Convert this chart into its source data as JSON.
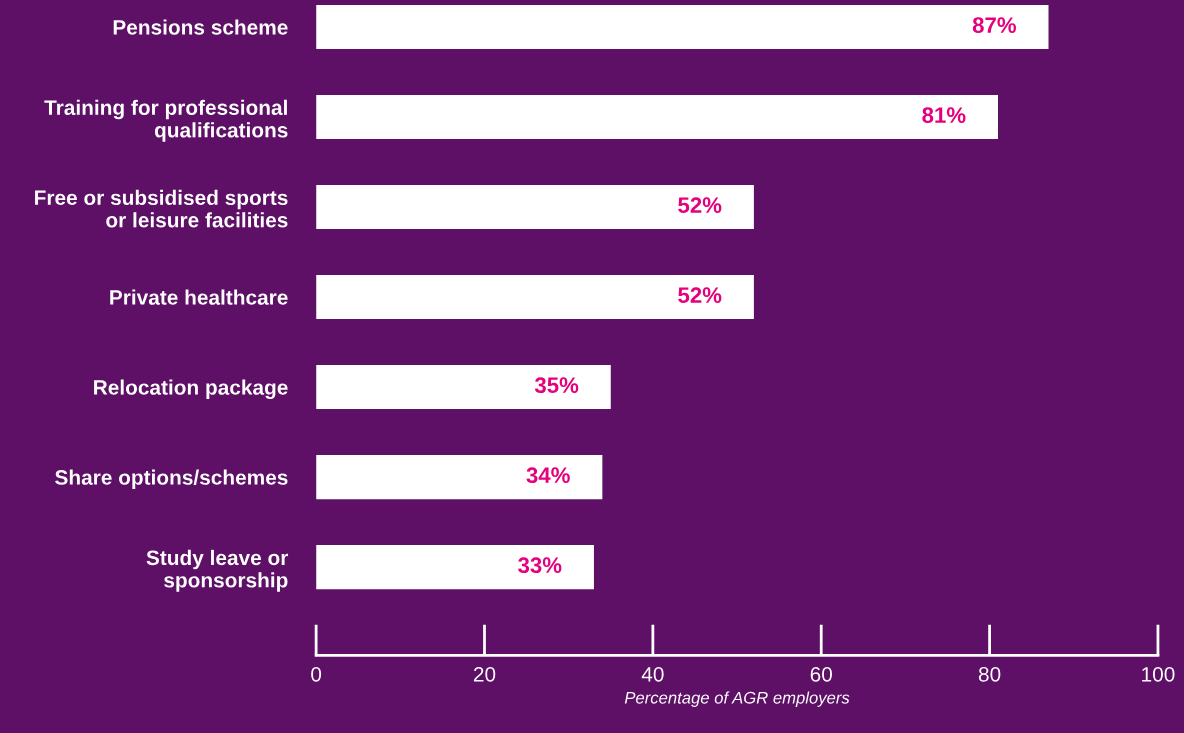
{
  "chart_data": {
    "type": "bar",
    "orientation": "horizontal",
    "categories": [
      "Pensions scheme",
      "Training for professional\nqualifications",
      "Free or subsidised sports\nor leisure facilities",
      "Private healthcare",
      "Relocation package",
      "Share options/schemes",
      "Study leave or\nsponsorship"
    ],
    "values": [
      87,
      81,
      52,
      52,
      35,
      34,
      33
    ],
    "value_labels": [
      "87%",
      "81%",
      "52%",
      "52%",
      "35%",
      "34%",
      "33%"
    ],
    "color": "#ffffff",
    "xlabel": "Percentage of AGR employers",
    "xlim": [
      0,
      100
    ],
    "xticks": [
      0,
      20,
      40,
      60,
      80,
      100
    ],
    "grid": false,
    "legend": false
  }
}
